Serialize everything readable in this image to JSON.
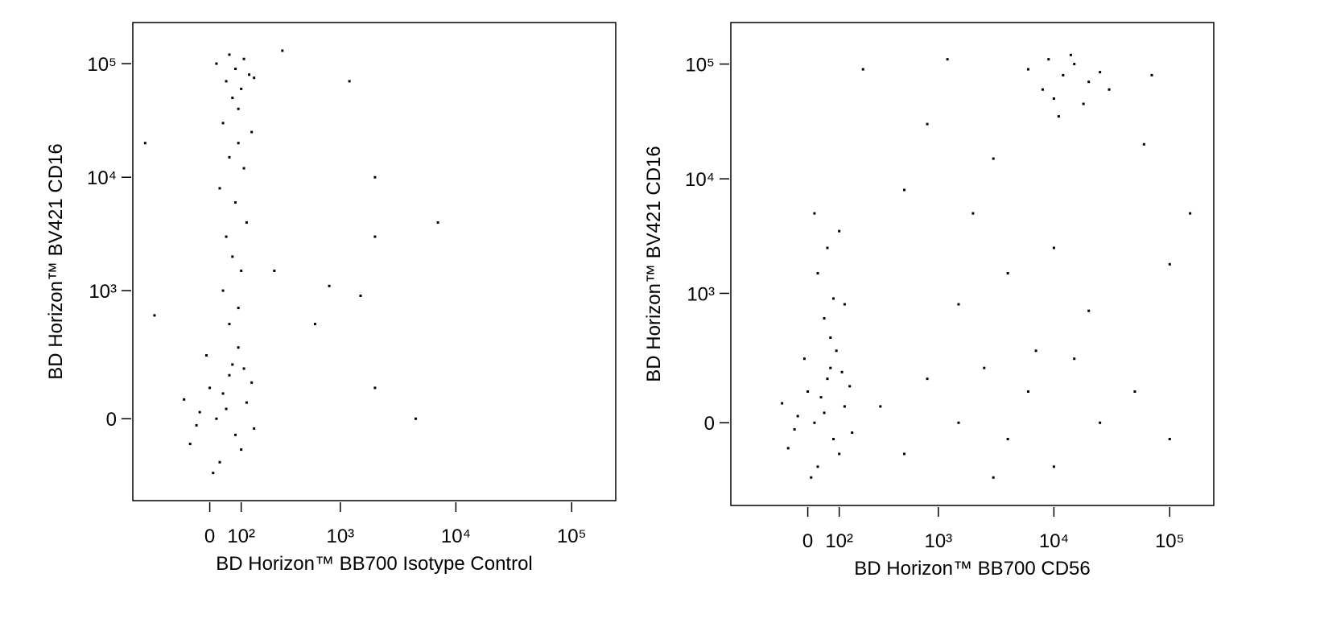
{
  "chart_data": [
    {
      "type": "scatter",
      "xlabel": "BD Horizon™ BB700 Isotype Control",
      "ylabel": "BD Horizon™ BV421 CD16",
      "color": "#000000",
      "scale": "biexponential",
      "xlim": [
        -330,
        240000
      ],
      "ylim": [
        -380,
        230000
      ],
      "xticks": [
        0,
        {
          "value": 100,
          "label": "10²"
        },
        {
          "value": 1000,
          "label": "10³"
        },
        {
          "value": 10000,
          "label": "10⁴"
        },
        {
          "value": 100000,
          "label": "10⁵"
        }
      ],
      "yticks": [
        0,
        {
          "value": 1000,
          "label": "10³"
        },
        {
          "value": 10000,
          "label": "10⁴"
        },
        {
          "value": 100000,
          "label": "10⁵"
        }
      ],
      "x": [
        20,
        50,
        80,
        -30,
        0,
        60,
        100,
        120,
        -60,
        30,
        70,
        -10,
        90,
        140,
        -80,
        10,
        150,
        40,
        110,
        -40,
        60,
        90,
        40,
        100,
        70,
        50,
        120,
        80,
        30,
        110,
        60,
        90,
        140,
        40,
        70,
        100,
        50,
        130,
        80,
        20,
        110,
        60,
        150,
        90,
        1200,
        2000,
        7000,
        2000,
        4500,
        2000,
        800,
        1500,
        600,
        300,
        250,
        -200,
        -250
      ],
      "y": [
        0,
        30,
        -50,
        20,
        100,
        150,
        -100,
        50,
        -80,
        -150,
        200,
        250,
        300,
        120,
        60,
        -200,
        -30,
        80,
        180,
        -20,
        500,
        700,
        1000,
        1500,
        2000,
        3000,
        4000,
        6000,
        8000,
        12000,
        15000,
        20000,
        25000,
        30000,
        50000,
        60000,
        70000,
        80000,
        90000,
        100000,
        110000,
        120000,
        75000,
        40000,
        70000,
        10000,
        4000,
        3000,
        0,
        100,
        1100,
        900,
        500,
        130000,
        1500,
        600,
        20000
      ]
    },
    {
      "type": "scatter",
      "xlabel": "BD Horizon™ BB700 CD56",
      "ylabel": "BD Horizon™ BV421 CD16",
      "color": "#000000",
      "scale": "biexponential",
      "xlim": [
        -330,
        240000
      ],
      "ylim": [
        -380,
        230000
      ],
      "xticks": [
        0,
        {
          "value": 100,
          "label": "10²"
        },
        {
          "value": 1000,
          "label": "10³"
        },
        {
          "value": 10000,
          "label": "10⁴"
        },
        {
          "value": 100000,
          "label": "10⁵"
        }
      ],
      "yticks": [
        0,
        {
          "value": 1000,
          "label": "10³"
        },
        {
          "value": 10000,
          "label": "10⁴"
        },
        {
          "value": 100000,
          "label": "10⁵"
        }
      ],
      "x": [
        20,
        50,
        80,
        -30,
        0,
        60,
        100,
        120,
        -60,
        30,
        70,
        -10,
        90,
        140,
        -80,
        10,
        150,
        40,
        110,
        -40,
        50,
        80,
        30,
        60,
        100,
        20,
        70,
        120,
        8000,
        12000,
        15000,
        10000,
        20000,
        6000,
        14000,
        18000,
        25000,
        9000,
        30000,
        11000,
        300,
        500,
        800,
        1500,
        2500,
        4000,
        6000,
        10000,
        15000,
        25000,
        50000,
        100000,
        3000,
        7000,
        500,
        2000,
        4000,
        10000,
        20000,
        1500,
        800,
        3000,
        60000,
        100000,
        70000,
        200,
        1200,
        150000
      ],
      "y": [
        0,
        30,
        -50,
        20,
        100,
        150,
        -100,
        50,
        -80,
        -150,
        200,
        250,
        300,
        120,
        60,
        -200,
        -30,
        80,
        180,
        -20,
        600,
        900,
        1500,
        2500,
        3500,
        5000,
        400,
        800,
        60000,
        80000,
        100000,
        50000,
        70000,
        90000,
        120000,
        45000,
        85000,
        110000,
        60000,
        35000,
        50,
        -100,
        150,
        0,
        200,
        -50,
        100,
        -150,
        250,
        0,
        100,
        -50,
        -200,
        300,
        8000,
        5000,
        1500,
        2500,
        700,
        800,
        30000,
        15000,
        20000,
        1800,
        80000,
        90000,
        110000,
        5000
      ]
    }
  ]
}
